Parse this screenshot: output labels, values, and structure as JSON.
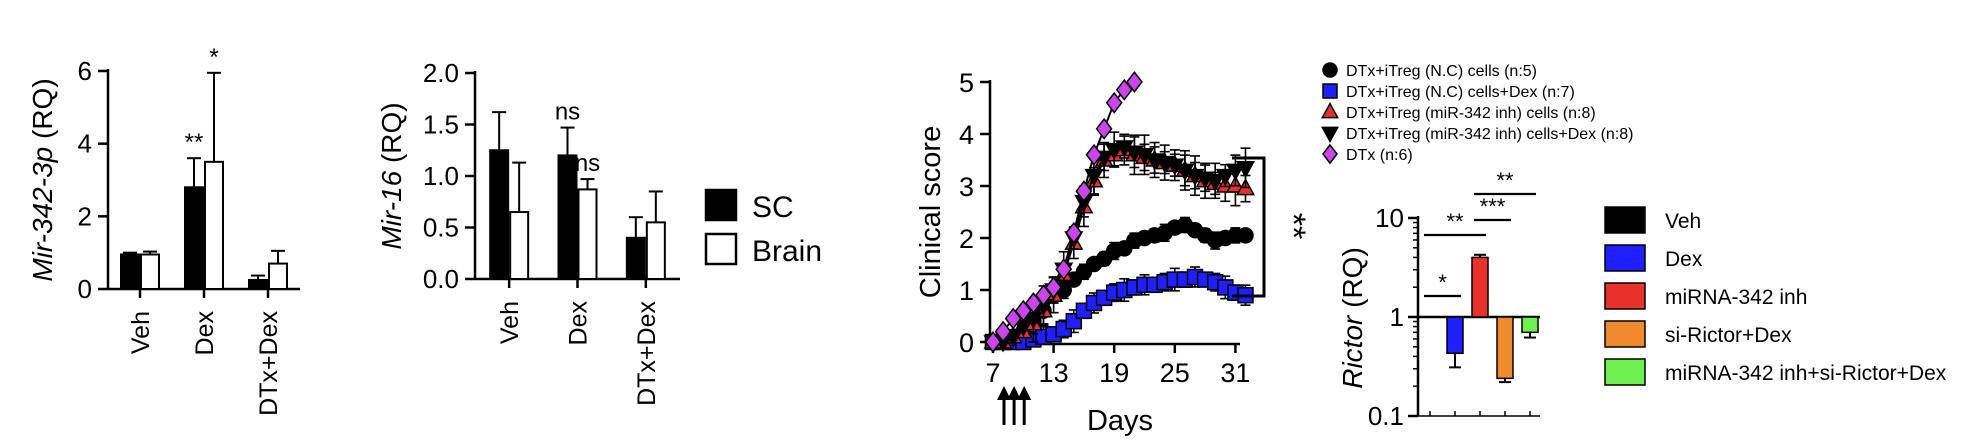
{
  "chart_data": [
    {
      "type": "bar",
      "ylabel": "Mir-342-3p (RQ)",
      "ylabel_italic": "Mir-342-3p",
      "ylabel_suffix": " (RQ)",
      "ylim": [
        0,
        6
      ],
      "yticks": [
        "0",
        "2",
        "4",
        "6"
      ],
      "categories": [
        "Veh",
        "Dex",
        "DTx+Dex"
      ],
      "series": [
        {
          "name": "SC",
          "values": [
            0.95,
            2.8,
            0.25
          ],
          "errors": [
            0.05,
            0.8,
            0.12
          ]
        },
        {
          "name": "Brain",
          "values": [
            0.95,
            3.5,
            0.7
          ],
          "errors": [
            0.08,
            2.45,
            0.35
          ]
        }
      ],
      "annotations": [
        {
          "category": "Dex",
          "series": "SC",
          "text": "**"
        },
        {
          "category": "Dex",
          "series": "Brain",
          "text": "*"
        }
      ]
    },
    {
      "type": "bar",
      "ylabel": "Mir-16 (RQ)",
      "ylabel_italic": "Mir-16",
      "ylabel_suffix": " (RQ)",
      "ylim": [
        0,
        2
      ],
      "yticks": [
        "0.0",
        "0.5",
        "1.0",
        "1.5",
        "2.0"
      ],
      "categories": [
        "Veh",
        "Dex",
        "DTx+Dex"
      ],
      "series": [
        {
          "name": "SC",
          "values": [
            1.25,
            1.2,
            0.4
          ],
          "errors": [
            0.37,
            0.27,
            0.2
          ]
        },
        {
          "name": "Brain",
          "values": [
            0.65,
            0.87,
            0.55
          ],
          "errors": [
            0.48,
            0.1,
            0.3
          ]
        }
      ],
      "annotations": [
        {
          "category": "Dex",
          "series": "SC",
          "text": "ns"
        },
        {
          "category": "Dex",
          "series": "Brain",
          "text": "ns"
        }
      ],
      "legend": {
        "placement": "right",
        "entries": [
          "SC",
          "Brain"
        ]
      }
    },
    {
      "type": "line",
      "ylabel": "Clinical score",
      "xlabel": "Days",
      "ylim": [
        0,
        5
      ],
      "yticks": [
        "0",
        "1",
        "2",
        "3",
        "4",
        "5"
      ],
      "xlim": [
        7,
        33
      ],
      "xticks": [
        "7",
        "13",
        "19",
        "25",
        "31"
      ],
      "x": [
        7,
        8,
        9,
        10,
        11,
        12,
        13,
        14,
        15,
        16,
        17,
        18,
        19,
        20,
        21,
        22,
        23,
        24,
        25,
        26,
        27,
        28,
        29,
        30,
        31,
        32
      ],
      "series": [
        {
          "name": "DTx+iTreg (N.C) cells (n:5)",
          "marker": "circle",
          "color": "#000000",
          "values": [
            0,
            0,
            0.1,
            0.2,
            0.4,
            0.6,
            0.9,
            1.0,
            1.2,
            1.35,
            1.5,
            1.6,
            1.75,
            1.8,
            1.95,
            2.0,
            2.05,
            2.1,
            2.2,
            2.25,
            2.15,
            2.05,
            1.95,
            2.0,
            2.05,
            2.05
          ]
        },
        {
          "name": "DTx+iTreg (N.C) cells+Dex (n:7)",
          "marker": "square",
          "color": "#1f1fff",
          "values": [
            0,
            0,
            0,
            0,
            0.05,
            0.1,
            0.15,
            0.25,
            0.4,
            0.6,
            0.75,
            0.85,
            0.95,
            1.0,
            1.05,
            1.1,
            1.1,
            1.15,
            1.2,
            1.2,
            1.25,
            1.2,
            1.15,
            1.05,
            0.95,
            0.9
          ]
        },
        {
          "name": "DTx+iTreg (miR-342 inh) cells (n:8)",
          "marker": "triangle-up",
          "color": "#e8312a",
          "values": [
            0,
            0,
            0.1,
            0.2,
            0.35,
            0.6,
            0.9,
            1.3,
            1.9,
            2.6,
            3.1,
            3.5,
            3.6,
            3.7,
            3.6,
            3.55,
            3.5,
            3.45,
            3.4,
            3.3,
            3.2,
            3.1,
            3.05,
            3.0,
            3.0,
            2.95
          ]
        },
        {
          "name": "DTx+iTreg (miR-342 inh) cells+Dex (n:8)",
          "marker": "triangle-down",
          "color": "#000000",
          "values": [
            0,
            0,
            0.1,
            0.3,
            0.45,
            0.7,
            1.0,
            1.4,
            2.0,
            2.7,
            3.2,
            3.55,
            3.7,
            3.75,
            3.65,
            3.6,
            3.5,
            3.45,
            3.4,
            3.3,
            3.2,
            3.15,
            3.1,
            3.2,
            3.3,
            3.35
          ]
        },
        {
          "name": "DTx (n:6)",
          "marker": "diamond",
          "color": "#cc44ee",
          "values": [
            0,
            0.2,
            0.45,
            0.6,
            0.75,
            0.9,
            1.05,
            1.4,
            2.1,
            2.9,
            3.6,
            4.1,
            4.6,
            4.85,
            5.0,
            null,
            null,
            null,
            null,
            null,
            null,
            null,
            null,
            null,
            null,
            null
          ]
        }
      ],
      "arrows": [
        "7",
        "8",
        "9"
      ],
      "annotation": "**"
    },
    {
      "type": "bar",
      "ylabel": "Rictor (RQ)",
      "ylabel_italic": "Rictor",
      "ylabel_suffix": " (RQ)",
      "yscale": "log",
      "ylim": [
        0.1,
        10
      ],
      "yticks": [
        "0.1",
        "1",
        "10"
      ],
      "categories": [
        "Veh",
        "Dex",
        "miRNA-342 inh",
        "si-Rictor+Dex",
        "miRNA-342 inh+si-Rictor+Dex"
      ],
      "values": [
        1.0,
        0.43,
        4.0,
        0.24,
        0.7
      ],
      "errors": [
        0.0,
        0.12,
        0.25,
        0.02,
        0.08
      ],
      "colors": [
        "#000000",
        "#1f1fff",
        "#e8312a",
        "#ef8a2e",
        "#6ef04e"
      ],
      "significance": [
        {
          "from": 0,
          "to": 1,
          "text": "*"
        },
        {
          "from": 0,
          "to": 2,
          "text": "**"
        },
        {
          "from": 2,
          "to": 3,
          "text": "***"
        },
        {
          "from": 2,
          "to": 4,
          "text": "**"
        }
      ],
      "legend": {
        "placement": "right",
        "entries": [
          "Veh",
          "Dex",
          "miRNA-342 inh",
          "si-Rictor+Dex",
          "miRNA-342 inh+si-Rictor+Dex"
        ]
      }
    }
  ]
}
